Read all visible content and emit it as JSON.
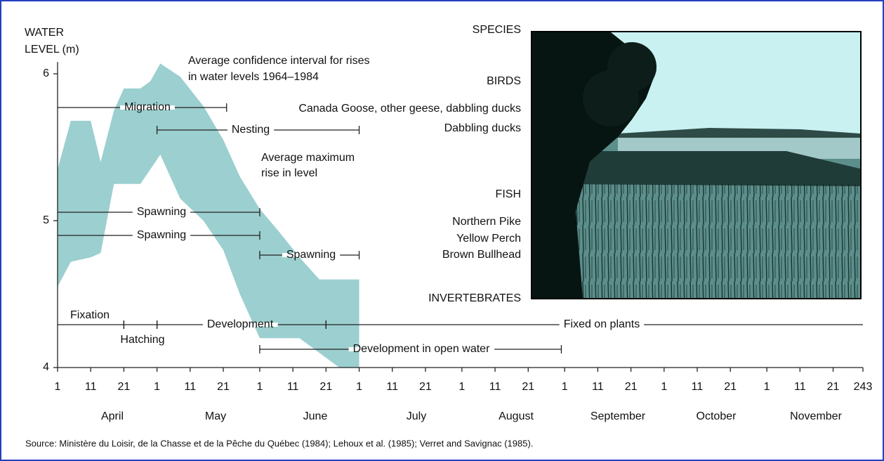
{
  "chart_data": {
    "type": "band",
    "y_label_lines": [
      "WATER",
      "LEVEL (m)"
    ],
    "annotations": [
      "Average confidence interval for rises",
      "in water levels 1964–1984",
      "Average maximum",
      "rise in level"
    ],
    "band": {
      "color": "#9ccfcf",
      "x": [
        0,
        4,
        10,
        13,
        17,
        20,
        25,
        28,
        31,
        37,
        44,
        50,
        55,
        61,
        67,
        73,
        79,
        85,
        91
      ],
      "upper": [
        5.35,
        5.68,
        5.68,
        5.4,
        5.75,
        5.9,
        5.9,
        5.95,
        6.07,
        5.98,
        5.78,
        5.55,
        5.3,
        5.08,
        4.92,
        4.75,
        4.6,
        4.6,
        4.6
      ],
      "lower": [
        4.55,
        4.72,
        4.75,
        4.78,
        5.25,
        5.25,
        5.25,
        5.35,
        5.45,
        5.15,
        5.0,
        4.8,
        4.5,
        4.2,
        4.2,
        4.2,
        4.1,
        4.0,
        4.0
      ]
    },
    "intervals": [
      {
        "label": "Migration",
        "start": 0,
        "end": 51
      },
      {
        "label": "Nesting",
        "start": 30,
        "end": 91
      },
      {
        "label": "Spawning",
        "start": 0,
        "end": 61
      },
      {
        "label": "Spawning",
        "start": 0,
        "end": 61
      },
      {
        "label": "Spawning",
        "start": 61,
        "end": 91
      },
      {
        "label": "Fixation",
        "start": 0,
        "end": 20
      },
      {
        "label": "Hatching",
        "start": 20,
        "end": 30
      },
      {
        "label": "Development",
        "start": 30,
        "end": 81
      },
      {
        "label": "Fixed on plants",
        "start": 81,
        "end": 243
      },
      {
        "label": "Development in open water",
        "start": 61,
        "end": 152
      }
    ],
    "species_labels": [
      "SPECIES",
      "BIRDS",
      "Canada Goose, other geese, dabbling ducks",
      "Dabbling ducks",
      "FISH",
      "Northern Pike",
      "Yellow Perch",
      "Brown Bullhead",
      "INVERTEBRATES"
    ],
    "months": [
      "April",
      "May",
      "June",
      "July",
      "August",
      "September",
      "October",
      "November"
    ],
    "xlim": [
      0,
      243
    ],
    "xticks": [
      {
        "value": 0,
        "label": "1"
      },
      {
        "value": 10,
        "label": "11"
      },
      {
        "value": 20,
        "label": "21"
      },
      {
        "value": 30,
        "label": "1"
      },
      {
        "value": 40,
        "label": "11"
      },
      {
        "value": 50,
        "label": "21"
      },
      {
        "value": 61,
        "label": "1"
      },
      {
        "value": 71,
        "label": "11"
      },
      {
        "value": 81,
        "label": "21"
      },
      {
        "value": 91,
        "label": "1"
      },
      {
        "value": 101,
        "label": "11"
      },
      {
        "value": 111,
        "label": "21"
      },
      {
        "value": 122,
        "label": "1"
      },
      {
        "value": 132,
        "label": "11"
      },
      {
        "value": 142,
        "label": "21"
      },
      {
        "value": 153,
        "label": "1"
      },
      {
        "value": 163,
        "label": "11"
      },
      {
        "value": 173,
        "label": "21"
      },
      {
        "value": 183,
        "label": "1"
      },
      {
        "value": 193,
        "label": "11"
      },
      {
        "value": 203,
        "label": "21"
      },
      {
        "value": 214,
        "label": "1"
      },
      {
        "value": 224,
        "label": "11"
      },
      {
        "value": 234,
        "label": "21"
      },
      243
    ],
    "ylim": [
      4,
      6.08
    ],
    "yticks": [
      4,
      5,
      6
    ],
    "source": "Source:  Ministère du Loisir, de la Chasse et de la Pêche du Québec (1984);  Lehoux et al. (1985); Verret and Savignac (1985)."
  }
}
